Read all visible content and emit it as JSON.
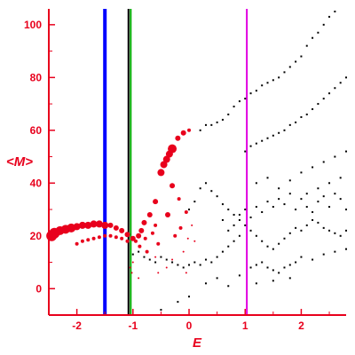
{
  "chart_data": {
    "type": "scatter",
    "xlabel": "E",
    "ylabel": "<M>",
    "xlim": [
      -2.5,
      2.8
    ],
    "ylim": [
      -10,
      106
    ],
    "x_ticks": [
      -2,
      -1,
      0,
      1,
      2
    ],
    "y_ticks": [
      0,
      20,
      40,
      60,
      80,
      100
    ],
    "x_tick_labels": [
      "-2",
      "-1",
      "0",
      "1",
      "2"
    ],
    "y_tick_labels": [
      "0",
      "20",
      "40",
      "60",
      "80",
      "100"
    ],
    "grid": false,
    "colors": {
      "axes": "#e8001c",
      "red_points": "#e8001c",
      "black_points": "#000000"
    },
    "vertical_lines": [
      {
        "x": -1.5,
        "color": "#0000ff",
        "thick": true
      },
      {
        "x": -1.08,
        "color": "#000000",
        "thick": false
      },
      {
        "x": -1.04,
        "color": "#00aa00",
        "thick": false
      },
      {
        "x": 1.03,
        "color": "#e000e0",
        "thick": false
      }
    ],
    "series": [
      {
        "color": "#e8001c",
        "points": [
          [
            -2.45,
            20
          ],
          [
            -2.4,
            21
          ],
          [
            -2.3,
            22
          ],
          [
            -2.2,
            22.5
          ],
          [
            -2.1,
            23
          ],
          [
            -2.0,
            23.5
          ],
          [
            -1.9,
            24
          ],
          [
            -1.8,
            24
          ],
          [
            -1.7,
            24.5
          ],
          [
            -1.6,
            24.5
          ],
          [
            -1.5,
            24
          ],
          [
            -1.4,
            24
          ],
          [
            -1.3,
            23
          ],
          [
            -1.2,
            22
          ],
          [
            -1.1,
            20.5
          ],
          [
            -1.0,
            19
          ],
          [
            -2.0,
            17
          ],
          [
            -1.9,
            18
          ],
          [
            -1.8,
            18.5
          ],
          [
            -1.7,
            19
          ],
          [
            -1.6,
            19.5
          ],
          [
            -1.5,
            20
          ],
          [
            -1.4,
            20
          ],
          [
            -1.3,
            19.5
          ],
          [
            -1.2,
            19
          ],
          [
            -1.1,
            18
          ],
          [
            -0.95,
            18
          ],
          [
            -0.9,
            20
          ],
          [
            -0.88,
            16
          ],
          [
            -0.85,
            22
          ],
          [
            -0.8,
            25
          ],
          [
            -0.78,
            19
          ],
          [
            -0.75,
            14
          ],
          [
            -0.7,
            28
          ],
          [
            -0.65,
            21
          ],
          [
            -0.6,
            33
          ],
          [
            -0.6,
            24
          ],
          [
            -0.55,
            17
          ],
          [
            -0.5,
            44
          ],
          [
            -0.45,
            47
          ],
          [
            -0.4,
            49
          ],
          [
            -0.38,
            28
          ],
          [
            -0.35,
            51
          ],
          [
            -0.3,
            53
          ],
          [
            -0.3,
            39
          ],
          [
            -0.25,
            20
          ],
          [
            -0.2,
            57
          ],
          [
            -0.18,
            34
          ],
          [
            -0.15,
            23
          ],
          [
            -0.1,
            59
          ],
          [
            -0.05,
            29
          ],
          [
            -0.02,
            19
          ],
          [
            0.0,
            60
          ],
          [
            0.05,
            24
          ],
          [
            0.1,
            18
          ],
          [
            -1.0,
            10
          ],
          [
            -0.9,
            4
          ],
          [
            -0.6,
            12
          ],
          [
            -0.55,
            6
          ],
          [
            -0.4,
            8
          ],
          [
            -0.3,
            11
          ],
          [
            -0.2,
            9
          ],
          [
            -0.1,
            14
          ],
          [
            -0.05,
            6
          ],
          [
            -1.02,
            6
          ],
          [
            -1.05,
            8
          ]
        ],
        "sizes": [
          6,
          6,
          5,
          5,
          5,
          4,
          4,
          4,
          4,
          4,
          4,
          3,
          3,
          3,
          3,
          3,
          2,
          2,
          2,
          2,
          2,
          2,
          2,
          2,
          2,
          2,
          2,
          3,
          2,
          3,
          3,
          2,
          2,
          3,
          2,
          3,
          2,
          2,
          4,
          4,
          4,
          3,
          4,
          5,
          3,
          2,
          3,
          2,
          2,
          3,
          2,
          1,
          2,
          1,
          1,
          1,
          1,
          1,
          1,
          1,
          1,
          1,
          1,
          1,
          1,
          1
        ]
      },
      {
        "color": "#000000",
        "points": [
          [
            -1.0,
            13
          ],
          [
            -0.9,
            14
          ],
          [
            -0.8,
            12
          ],
          [
            -0.7,
            11
          ],
          [
            -0.6,
            10
          ],
          [
            -0.5,
            12
          ],
          [
            -0.4,
            11
          ],
          [
            -0.3,
            10
          ],
          [
            -0.2,
            9
          ],
          [
            -0.1,
            8
          ],
          [
            0.0,
            9
          ],
          [
            0.1,
            10
          ],
          [
            0.2,
            9
          ],
          [
            0.3,
            11
          ],
          [
            0.4,
            10
          ],
          [
            0.5,
            12
          ],
          [
            0.6,
            14
          ],
          [
            0.7,
            16
          ],
          [
            0.8,
            18
          ],
          [
            0.9,
            20
          ],
          [
            0.0,
            30
          ],
          [
            0.1,
            33
          ],
          [
            0.2,
            38
          ],
          [
            0.3,
            40
          ],
          [
            0.4,
            37
          ],
          [
            0.5,
            35
          ],
          [
            0.6,
            32
          ],
          [
            0.7,
            30
          ],
          [
            0.8,
            28
          ],
          [
            0.9,
            26
          ],
          [
            1.0,
            24
          ],
          [
            1.1,
            22
          ],
          [
            1.2,
            20
          ],
          [
            1.3,
            18
          ],
          [
            1.4,
            16
          ],
          [
            1.5,
            15
          ],
          [
            1.6,
            17
          ],
          [
            1.7,
            19
          ],
          [
            1.8,
            21
          ],
          [
            1.9,
            23
          ],
          [
            2.0,
            22
          ],
          [
            2.1,
            24
          ],
          [
            2.2,
            26
          ],
          [
            2.3,
            25
          ],
          [
            2.4,
            23
          ],
          [
            2.5,
            22
          ],
          [
            2.6,
            21
          ],
          [
            2.7,
            20
          ],
          [
            2.8,
            22
          ],
          [
            0.2,
            60
          ],
          [
            0.3,
            62
          ],
          [
            0.4,
            62
          ],
          [
            0.5,
            63
          ],
          [
            0.6,
            64
          ],
          [
            0.7,
            66
          ],
          [
            0.8,
            69
          ],
          [
            0.9,
            71
          ],
          [
            1.0,
            72
          ],
          [
            1.1,
            74
          ],
          [
            1.2,
            75
          ],
          [
            1.3,
            77
          ],
          [
            1.4,
            78
          ],
          [
            1.5,
            79
          ],
          [
            1.6,
            80
          ],
          [
            1.7,
            82
          ],
          [
            1.8,
            84
          ],
          [
            1.9,
            86
          ],
          [
            2.0,
            88
          ],
          [
            2.1,
            92
          ],
          [
            2.2,
            95
          ],
          [
            2.3,
            97
          ],
          [
            2.4,
            100
          ],
          [
            2.5,
            103
          ],
          [
            2.6,
            105
          ],
          [
            1.0,
            52
          ],
          [
            1.1,
            54
          ],
          [
            1.2,
            55
          ],
          [
            1.3,
            56
          ],
          [
            1.4,
            57
          ],
          [
            1.5,
            58
          ],
          [
            1.6,
            59
          ],
          [
            1.7,
            60
          ],
          [
            1.8,
            62
          ],
          [
            1.9,
            63
          ],
          [
            2.0,
            65
          ],
          [
            2.1,
            66
          ],
          [
            2.2,
            68
          ],
          [
            2.3,
            70
          ],
          [
            2.4,
            72
          ],
          [
            2.5,
            74
          ],
          [
            2.6,
            76
          ],
          [
            2.7,
            78
          ],
          [
            2.8,
            80
          ],
          [
            1.2,
            40
          ],
          [
            1.4,
            42
          ],
          [
            1.6,
            38
          ],
          [
            1.8,
            41
          ],
          [
            2.0,
            44
          ],
          [
            2.2,
            46
          ],
          [
            2.4,
            48
          ],
          [
            2.6,
            50
          ],
          [
            2.8,
            52
          ],
          [
            2.1,
            36
          ],
          [
            2.3,
            38
          ],
          [
            2.5,
            40
          ],
          [
            2.7,
            42
          ],
          [
            1.1,
            8
          ],
          [
            1.2,
            9
          ],
          [
            1.3,
            10
          ],
          [
            1.4,
            8
          ],
          [
            1.5,
            7
          ],
          [
            1.6,
            6
          ],
          [
            1.7,
            8
          ],
          [
            1.8,
            9
          ],
          [
            1.9,
            10
          ],
          [
            2.0,
            12
          ],
          [
            2.2,
            11
          ],
          [
            2.4,
            13
          ],
          [
            2.6,
            14
          ],
          [
            2.8,
            15
          ],
          [
            0.6,
            26
          ],
          [
            0.7,
            22
          ],
          [
            0.8,
            24
          ],
          [
            0.9,
            28
          ],
          [
            1.0,
            30
          ],
          [
            1.1,
            27
          ],
          [
            1.2,
            31
          ],
          [
            1.3,
            29
          ],
          [
            1.4,
            33
          ],
          [
            1.5,
            31
          ],
          [
            1.6,
            34
          ],
          [
            1.7,
            32
          ],
          [
            1.8,
            36
          ],
          [
            1.9,
            30
          ],
          [
            2.0,
            34
          ],
          [
            2.1,
            31
          ],
          [
            2.2,
            29
          ],
          [
            2.3,
            33
          ],
          [
            2.4,
            35
          ],
          [
            2.5,
            31
          ],
          [
            2.6,
            36
          ],
          [
            2.7,
            34
          ],
          [
            2.8,
            30
          ],
          [
            -0.5,
            -8
          ],
          [
            -0.2,
            -5
          ],
          [
            0.0,
            -3
          ],
          [
            0.3,
            2
          ],
          [
            0.5,
            4
          ],
          [
            0.7,
            1
          ],
          [
            0.9,
            5
          ],
          [
            1.2,
            2
          ],
          [
            1.5,
            3
          ],
          [
            1.8,
            4
          ]
        ]
      }
    ]
  }
}
